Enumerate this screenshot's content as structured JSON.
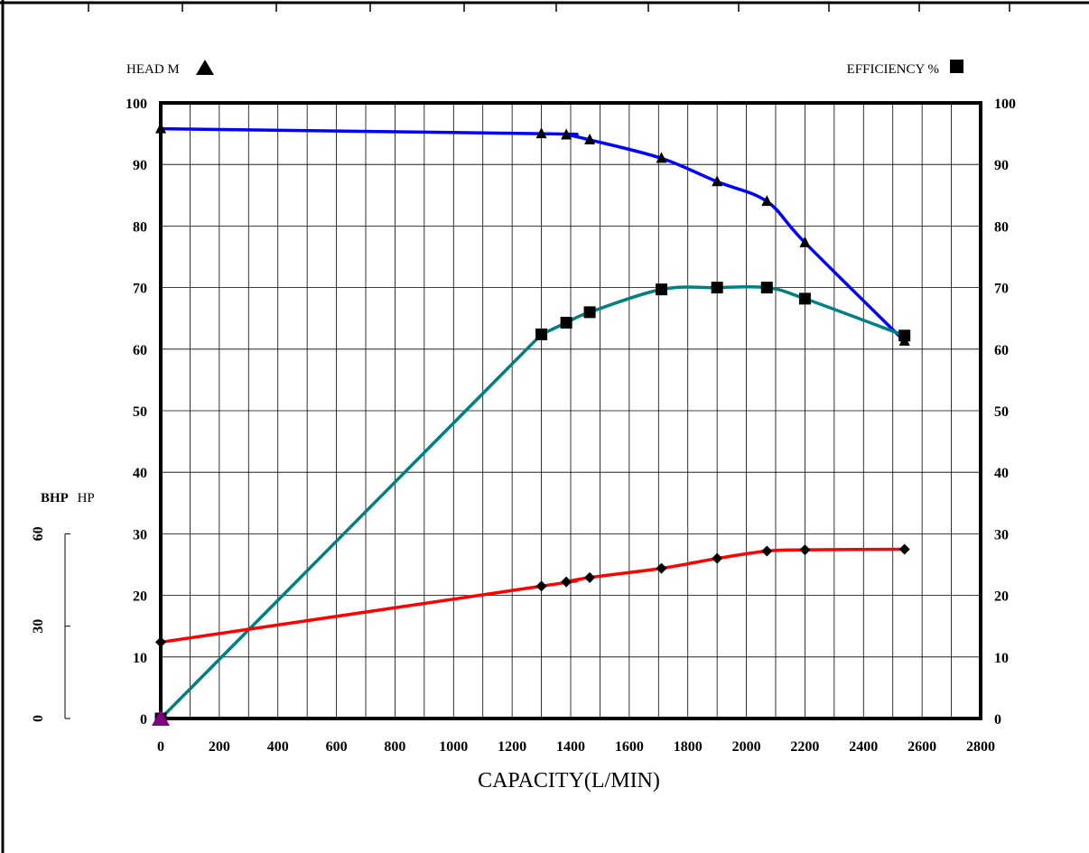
{
  "chart_data": {
    "type": "line",
    "xlabel": "CAPACITY(L/MIN)",
    "x_ticks": [
      0,
      200,
      400,
      600,
      800,
      1000,
      1200,
      1400,
      1600,
      1800,
      2000,
      2200,
      2400,
      2600,
      2800
    ],
    "xlim": [
      0,
      2800
    ],
    "y_left_label": "HEAD  M",
    "y_right_label": "EFFICIENCY  %",
    "y_ticks": [
      0,
      10,
      20,
      30,
      40,
      50,
      60,
      70,
      80,
      90,
      100
    ],
    "ylim": [
      0,
      100
    ],
    "bhp_label_bold": "BHP",
    "bhp_label_unit": "HP",
    "bhp_ticks": [
      0,
      30,
      60
    ],
    "grid": true,
    "series": [
      {
        "key": "head",
        "marker": "triangle",
        "color": "#0000ff",
        "x": [
          0,
          1300,
          1385,
          1465,
          1710,
          1900,
          2070,
          2200,
          2540
        ],
        "y": [
          95.8,
          95,
          94.8,
          94,
          91,
          87.2,
          84,
          77.3,
          61.3
        ]
      },
      {
        "key": "efficiency",
        "marker": "square",
        "color": "#008080",
        "x": [
          0,
          1300,
          1385,
          1465,
          1710,
          1900,
          2070,
          2200,
          2540
        ],
        "y": [
          0,
          62.4,
          64.3,
          66,
          69.7,
          70,
          70,
          68.2,
          62.2
        ]
      },
      {
        "key": "bhp",
        "marker": "diamond",
        "color": "#ff0000",
        "x": [
          0,
          1300,
          1385,
          1465,
          1710,
          1900,
          2070,
          2200,
          2540
        ],
        "y": [
          12.4,
          21.5,
          22.2,
          22.9,
          24.4,
          26,
          27.2,
          27.4,
          27.5
        ]
      }
    ]
  }
}
